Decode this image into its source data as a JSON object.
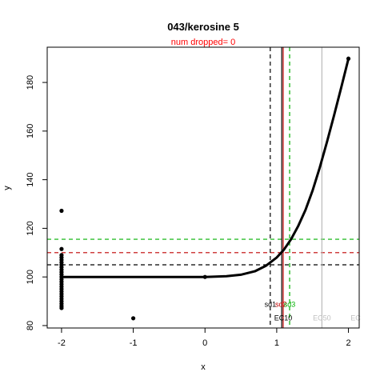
{
  "chart_data": {
    "type": "scatter",
    "title": "043/kerosine 5",
    "subtitle": "num dropped= 0",
    "xlabel": "x",
    "ylabel": "y",
    "xlim": [
      -2.2,
      2.15
    ],
    "ylim": [
      79,
      194.5
    ],
    "xticks": [
      -2,
      -1,
      0,
      1,
      2
    ],
    "yticks": [
      80,
      100,
      120,
      140,
      160,
      180
    ],
    "grid": false,
    "colors": {
      "title": "#000000",
      "subtitle": "#ff0000",
      "points": "#000000",
      "curve": "#000000",
      "black_line": "#000000",
      "red_line": "#c00000",
      "green_line": "#00b000",
      "gray_line": "#bbbbbb",
      "gray_text": "#c0c0c0"
    },
    "points": [
      {
        "x": -2,
        "y": 127.2
      },
      {
        "x": -2,
        "y": 111.5
      },
      {
        "x": -2,
        "y": 109.0
      },
      {
        "x": -2,
        "y": 108.0
      },
      {
        "x": -2,
        "y": 107.0
      },
      {
        "x": -2,
        "y": 106.0
      },
      {
        "x": -2,
        "y": 105.0
      },
      {
        "x": -2,
        "y": 104.0
      },
      {
        "x": -2,
        "y": 103.0
      },
      {
        "x": -2,
        "y": 102.0
      },
      {
        "x": -2,
        "y": 101.0
      },
      {
        "x": -2,
        "y": 100.0
      },
      {
        "x": -2,
        "y": 99.0
      },
      {
        "x": -2,
        "y": 98.0
      },
      {
        "x": -2,
        "y": 97.0
      },
      {
        "x": -2,
        "y": 96.0
      },
      {
        "x": -2,
        "y": 95.0
      },
      {
        "x": -2,
        "y": 94.0
      },
      {
        "x": -2,
        "y": 93.0
      },
      {
        "x": -2,
        "y": 92.0
      },
      {
        "x": -2,
        "y": 91.0
      },
      {
        "x": -2,
        "y": 90.0
      },
      {
        "x": -2,
        "y": 89.0
      },
      {
        "x": -2,
        "y": 88.0
      },
      {
        "x": -2,
        "y": 87.2
      },
      {
        "x": -1,
        "y": 83.0
      },
      {
        "x": 0,
        "y": 100.0
      },
      {
        "x": 2,
        "y": 189.8
      }
    ],
    "curve": [
      {
        "x": -2,
        "y": 100.0
      },
      {
        "x": -1,
        "y": 100.0
      },
      {
        "x": 0,
        "y": 100.0
      },
      {
        "x": 0.3,
        "y": 100.3
      },
      {
        "x": 0.5,
        "y": 100.9
      },
      {
        "x": 0.7,
        "y": 102.4
      },
      {
        "x": 0.85,
        "y": 104.6
      },
      {
        "x": 1.0,
        "y": 108.0
      },
      {
        "x": 1.1,
        "y": 111.2
      },
      {
        "x": 1.2,
        "y": 115.5
      },
      {
        "x": 1.3,
        "y": 121.0
      },
      {
        "x": 1.4,
        "y": 127.5
      },
      {
        "x": 1.5,
        "y": 135.5
      },
      {
        "x": 1.6,
        "y": 145.0
      },
      {
        "x": 1.7,
        "y": 155.5
      },
      {
        "x": 1.8,
        "y": 166.5
      },
      {
        "x": 1.9,
        "y": 178.0
      },
      {
        "x": 2.0,
        "y": 189.8
      }
    ],
    "hlines": [
      {
        "y": 105.0,
        "color": "#000000",
        "dash": true
      },
      {
        "y": 110.0,
        "color": "#c00000",
        "dash": true
      },
      {
        "y": 115.5,
        "color": "#00b000",
        "dash": true
      }
    ],
    "vlines": [
      {
        "x": 0.91,
        "color": "#000000",
        "dash": true
      },
      {
        "x": 1.07,
        "color": "#000000",
        "dash": false
      },
      {
        "x": 1.09,
        "color": "#c00000",
        "dash": false
      },
      {
        "x": 1.18,
        "color": "#00b000",
        "dash": true
      },
      {
        "x": 1.63,
        "color": "#bbbbbb",
        "dash": false
      }
    ],
    "annotations": [
      {
        "text": "sd1",
        "x": 0.91,
        "y": 87.8,
        "color": "#000000"
      },
      {
        "text": "sd2",
        "x": 1.06,
        "y": 87.8,
        "color": "#c00000"
      },
      {
        "text": "sd3",
        "x": 1.18,
        "y": 87.8,
        "color": "#00b000"
      },
      {
        "text": "EC10",
        "x": 1.09,
        "y": 82.2,
        "color": "#000000"
      },
      {
        "text": "EC50",
        "x": 1.63,
        "y": 82.2,
        "color": "#c0c0c0"
      },
      {
        "text": "EC",
        "x": 2.1,
        "y": 82.2,
        "color": "#c0c0c0"
      }
    ]
  }
}
